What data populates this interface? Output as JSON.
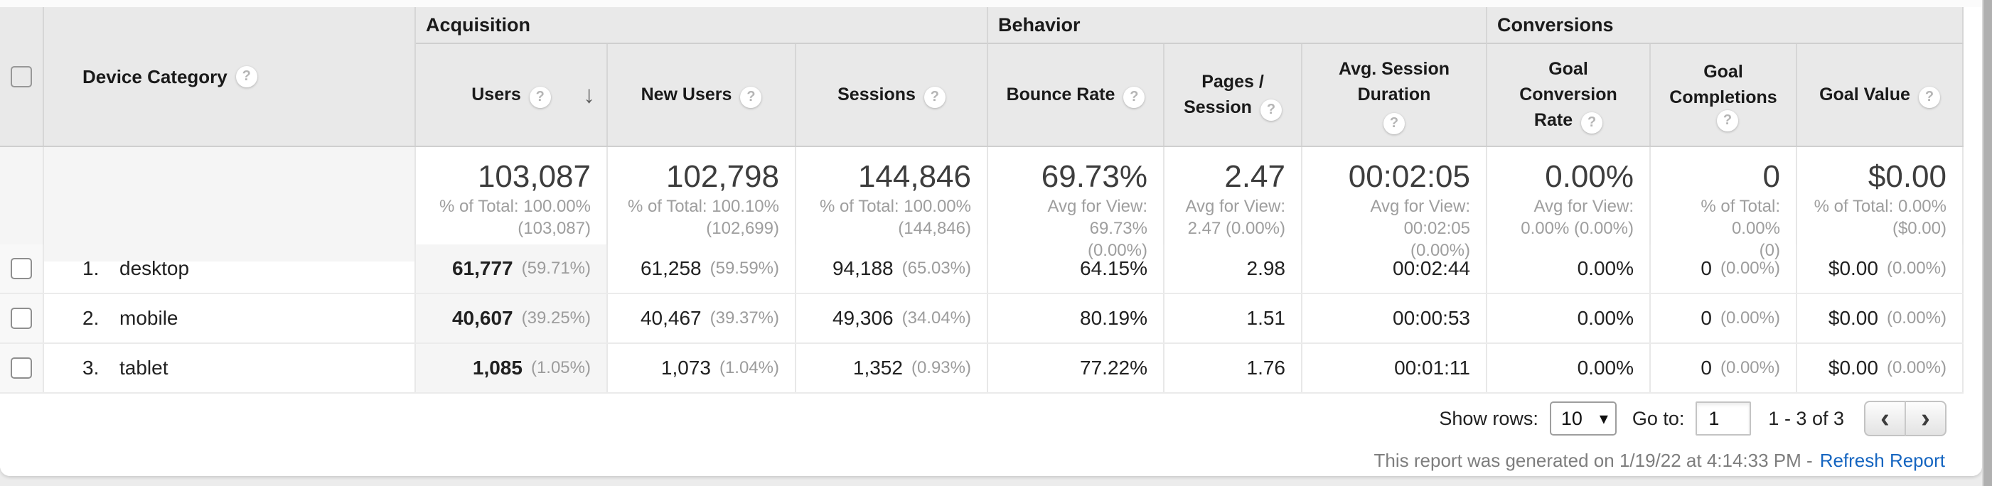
{
  "header": {
    "groups": [
      "Acquisition",
      "Behavior",
      "Conversions"
    ],
    "device_col": "Device Category",
    "metrics": [
      "Users",
      "New Users",
      "Sessions",
      "Bounce Rate",
      "Pages / Session",
      "Avg. Session Duration",
      "Goal Conversion Rate",
      "Goal Completions",
      "Goal Value"
    ]
  },
  "icons": {
    "help": "?",
    "sort_desc": "↓",
    "select_chevron": "▾",
    "prev": "‹",
    "next": "›"
  },
  "totals": [
    {
      "value": "103,087",
      "line1": "% of Total: 100.00%",
      "line2": "(103,087)"
    },
    {
      "value": "102,798",
      "line1": "% of Total: 100.10%",
      "line2": "(102,699)"
    },
    {
      "value": "144,846",
      "line1": "% of Total: 100.00%",
      "line2": "(144,846)"
    },
    {
      "value": "69.73%",
      "line1": "Avg for View: 69.73%",
      "line2": "(0.00%)"
    },
    {
      "value": "2.47",
      "line1": "Avg for View:",
      "line2": "2.47 (0.00%)"
    },
    {
      "value": "00:02:05",
      "line1": "Avg for View: 00:02:05",
      "line2": "(0.00%)"
    },
    {
      "value": "0.00%",
      "line1": "Avg for View:",
      "line2": "0.00% (0.00%)"
    },
    {
      "value": "0",
      "line1": "% of Total: 0.00%",
      "line2": "(0)"
    },
    {
      "value": "$0.00",
      "line1": "% of Total: 0.00%",
      "line2": "($0.00)"
    }
  ],
  "rows": [
    {
      "index": "1.",
      "name": "desktop",
      "users": "61,777",
      "users_pct": "(59.71%)",
      "new_users": "61,258",
      "new_users_pct": "(59.59%)",
      "sessions": "94,188",
      "sessions_pct": "(65.03%)",
      "bounce_rate": "64.15%",
      "pages_per_session": "2.98",
      "avg_duration": "00:02:44",
      "goal_cr": "0.00%",
      "goal_completions": "0",
      "goal_completions_pct": "(0.00%)",
      "goal_value": "$0.00",
      "goal_value_pct": "(0.00%)"
    },
    {
      "index": "2.",
      "name": "mobile",
      "users": "40,607",
      "users_pct": "(39.25%)",
      "new_users": "40,467",
      "new_users_pct": "(39.37%)",
      "sessions": "49,306",
      "sessions_pct": "(34.04%)",
      "bounce_rate": "80.19%",
      "pages_per_session": "1.51",
      "avg_duration": "00:00:53",
      "goal_cr": "0.00%",
      "goal_completions": "0",
      "goal_completions_pct": "(0.00%)",
      "goal_value": "$0.00",
      "goal_value_pct": "(0.00%)"
    },
    {
      "index": "3.",
      "name": "tablet",
      "users": "1,085",
      "users_pct": "(1.05%)",
      "new_users": "1,073",
      "new_users_pct": "(1.04%)",
      "sessions": "1,352",
      "sessions_pct": "(0.93%)",
      "bounce_rate": "77.22%",
      "pages_per_session": "1.76",
      "avg_duration": "00:01:11",
      "goal_cr": "0.00%",
      "goal_completions": "0",
      "goal_completions_pct": "(0.00%)",
      "goal_value": "$0.00",
      "goal_value_pct": "(0.00%)"
    }
  ],
  "footer": {
    "show_rows_label": "Show rows:",
    "show_rows_value": "10",
    "goto_label": "Go to:",
    "goto_value": "1",
    "range_text": "1 - 3 of 3",
    "generated_text": "This report was generated on 1/19/22 at 4:14:33 PM -",
    "refresh_link": "Refresh Report"
  },
  "colors": {
    "link_blue": "#1565c0",
    "header_bg": "#e9e9e9",
    "sorted_column_bg": "#f5f5f5"
  }
}
